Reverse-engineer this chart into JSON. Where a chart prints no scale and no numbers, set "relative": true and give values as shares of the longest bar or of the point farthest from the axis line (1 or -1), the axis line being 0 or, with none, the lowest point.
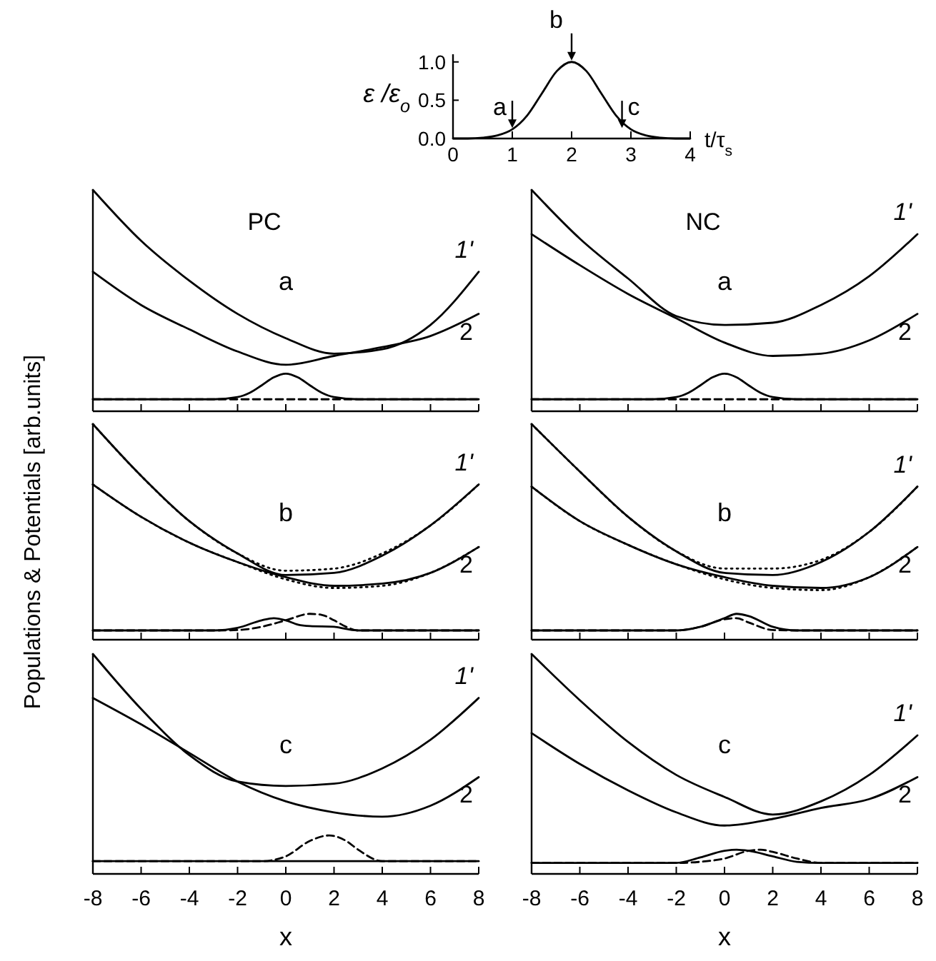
{
  "chart_data": [
    {
      "type": "line",
      "xlabel": "t/τ$_{s}$",
      "ylabel": "ε /ε$_{o}$",
      "x": [
        0,
        0.25,
        0.5,
        0.75,
        1,
        1.25,
        1.5,
        1.75,
        2,
        2.25,
        2.5,
        2.75,
        3,
        3.25,
        3.5,
        3.75,
        4
      ],
      "series": [
        {
          "color": "#000000",
          "values": [
            0,
            0,
            0.01,
            0.04,
            0.12,
            0.3,
            0.59,
            0.88,
            1.0,
            0.88,
            0.59,
            0.3,
            0.12,
            0.04,
            0.01,
            0,
            0
          ]
        }
      ],
      "xlim": [
        0,
        4
      ],
      "xticks": [
        0,
        1,
        2,
        3,
        4
      ],
      "ylim": [
        0,
        1.1
      ],
      "yticks": [
        {
          "value": 0,
          "label": "0.0"
        },
        {
          "value": 0.5,
          "label": "0.5"
        },
        {
          "value": 1,
          "label": "1.0"
        }
      ],
      "annotations": [
        {
          "text": "a",
          "x": 1,
          "y": 0.12
        },
        {
          "text": "b",
          "x": 2,
          "y": 1.0
        },
        {
          "text": "c",
          "x": 2.85,
          "y": 0.12
        }
      ]
    },
    {
      "type": "line",
      "title": "PC",
      "relative": true,
      "tick_labels": false,
      "xlim": [
        -8,
        8
      ],
      "xticks": [
        -8,
        -6,
        -4,
        -2,
        0,
        2,
        4,
        6,
        8
      ],
      "x": [
        -8,
        -6,
        -4,
        -2,
        0,
        2,
        4,
        6,
        8
      ],
      "annotations": [
        "a"
      ],
      "series": [
        {
          "name": "1'",
          "color": "#000000",
          "values": [
            1.0,
            0.77,
            0.59,
            0.44,
            0.33,
            0.26,
            0.28,
            0.39,
            0.63
          ]
        },
        {
          "name": "2",
          "color": "#000000",
          "values": [
            0.63,
            0.48,
            0.37,
            0.27,
            0.21,
            0.25,
            0.29,
            0.34,
            0.44
          ]
        },
        {
          "color": "#000000",
          "x": [
            -8,
            -3,
            -2,
            -1.5,
            -1,
            -0.5,
            0,
            0.5,
            1,
            1.5,
            2,
            3,
            8
          ],
          "values": [
            0.054,
            0.054,
            0.064,
            0.083,
            0.117,
            0.153,
            0.17,
            0.153,
            0.117,
            0.083,
            0.064,
            0.054,
            0.054
          ]
        },
        {
          "color": "#000000",
          "line_style": "dashed",
          "x": [
            -8,
            8
          ],
          "values": [
            0.054,
            0.054
          ]
        }
      ]
    },
    {
      "type": "line",
      "title": "NC",
      "relative": true,
      "tick_labels": false,
      "xlim": [
        -8,
        8
      ],
      "xticks": [
        -8,
        -6,
        -4,
        -2,
        0,
        2,
        4,
        6,
        8
      ],
      "x": [
        -8,
        -6,
        -4,
        -2,
        0,
        2,
        4,
        6,
        8
      ],
      "annotations": [
        "a"
      ],
      "series": [
        {
          "name": "1'",
          "color": "#000000",
          "values": [
            1.0,
            0.78,
            0.6,
            0.43,
            0.39,
            0.4,
            0.48,
            0.61,
            0.8
          ]
        },
        {
          "name": "2",
          "color": "#000000",
          "values": [
            0.8,
            0.66,
            0.53,
            0.42,
            0.31,
            0.25,
            0.26,
            0.32,
            0.44
          ]
        },
        {
          "color": "#000000",
          "x": [
            -8,
            -3,
            -2,
            -1.5,
            -1,
            -0.5,
            0,
            0.5,
            1,
            1.5,
            2,
            3,
            8
          ],
          "values": [
            0.054,
            0.054,
            0.064,
            0.083,
            0.117,
            0.153,
            0.17,
            0.153,
            0.117,
            0.083,
            0.064,
            0.054,
            0.054
          ]
        },
        {
          "color": "#000000",
          "line_style": "dashed",
          "x": [
            -8,
            8
          ],
          "values": [
            0.054,
            0.054
          ]
        }
      ]
    },
    {
      "type": "line",
      "ylabel": "Populations & Potentials [arb.units]",
      "relative": true,
      "tick_labels": false,
      "xlim": [
        -8,
        8
      ],
      "xticks": [
        -8,
        -6,
        -4,
        -2,
        0,
        2,
        4,
        6,
        8
      ],
      "x": [
        -8,
        -6,
        -4,
        -2,
        0,
        2,
        4,
        6,
        8
      ],
      "annotations": [
        "b"
      ],
      "series": [
        {
          "name": "1'",
          "color": "#000000",
          "values": [
            1.0,
            0.76,
            0.55,
            0.4,
            0.3,
            0.31,
            0.39,
            0.53,
            0.72
          ]
        },
        {
          "name": "2",
          "color": "#000000",
          "values": [
            0.72,
            0.57,
            0.45,
            0.36,
            0.29,
            0.25,
            0.26,
            0.31,
            0.43
          ]
        },
        {
          "color": "#000000",
          "line_style": "dotted",
          "values": [
            1.0,
            0.76,
            0.55,
            0.4,
            0.32,
            0.33,
            0.4,
            0.53,
            0.72
          ]
        },
        {
          "color": "#000000",
          "line_style": "dotted",
          "values": [
            0.72,
            0.57,
            0.45,
            0.36,
            0.28,
            0.24,
            0.25,
            0.31,
            0.43
          ]
        },
        {
          "color": "#000000",
          "x": [
            -8,
            -3,
            -2,
            -1,
            -0.5,
            0,
            0.5,
            1,
            2,
            2.5,
            3,
            8
          ],
          "values": [
            0.043,
            0.043,
            0.055,
            0.09,
            0.1,
            0.09,
            0.07,
            0.063,
            0.06,
            0.05,
            0.043,
            0.043
          ]
        },
        {
          "color": "#000000",
          "line_style": "dashed",
          "x": [
            -8,
            -3,
            -2,
            -1,
            0,
            1,
            1.5,
            2,
            2.5,
            3,
            8
          ],
          "values": [
            0.043,
            0.043,
            0.045,
            0.06,
            0.09,
            0.12,
            0.115,
            0.09,
            0.06,
            0.043,
            0.043
          ]
        }
      ]
    },
    {
      "type": "line",
      "relative": true,
      "tick_labels": false,
      "xlim": [
        -8,
        8
      ],
      "xticks": [
        -8,
        -6,
        -4,
        -2,
        0,
        2,
        4,
        6,
        8
      ],
      "x": [
        -8,
        -6,
        -4,
        -2,
        0,
        2,
        4,
        6,
        8
      ],
      "annotations": [
        "b"
      ],
      "series": [
        {
          "name": "1'",
          "color": "#000000",
          "values": [
            1.0,
            0.78,
            0.57,
            0.41,
            0.31,
            0.3,
            0.36,
            0.5,
            0.71
          ]
        },
        {
          "name": "2",
          "color": "#000000",
          "values": [
            0.71,
            0.55,
            0.44,
            0.35,
            0.29,
            0.25,
            0.24,
            0.29,
            0.43
          ]
        },
        {
          "color": "#000000",
          "line_style": "dotted",
          "values": [
            1.0,
            0.78,
            0.57,
            0.41,
            0.33,
            0.33,
            0.37,
            0.5,
            0.71
          ]
        },
        {
          "color": "#000000",
          "line_style": "dotted",
          "values": [
            0.71,
            0.55,
            0.44,
            0.35,
            0.28,
            0.24,
            0.23,
            0.29,
            0.43
          ]
        },
        {
          "color": "#000000",
          "x": [
            -8,
            -2,
            -1,
            0,
            0.5,
            1,
            2,
            3,
            8
          ],
          "values": [
            0.043,
            0.043,
            0.06,
            0.1,
            0.12,
            0.11,
            0.06,
            0.043,
            0.043
          ]
        },
        {
          "color": "#000000",
          "line_style": "dashed",
          "x": [
            -8,
            -2,
            -1,
            0,
            0.5,
            1,
            2,
            3,
            8
          ],
          "values": [
            0.043,
            0.043,
            0.06,
            0.095,
            0.1,
            0.08,
            0.045,
            0.043,
            0.043
          ]
        }
      ]
    },
    {
      "type": "line",
      "xlabel": "x",
      "relative": true,
      "tick_labels": "x",
      "xlim": [
        -8,
        8
      ],
      "xticks": [
        -8,
        -6,
        -4,
        -2,
        0,
        2,
        4,
        6,
        8
      ],
      "x": [
        -8,
        -6,
        -4,
        -2,
        0,
        2,
        4,
        6,
        8
      ],
      "annotations": [
        "c"
      ],
      "series": [
        {
          "name": "1'",
          "color": "#000000",
          "values": [
            1.0,
            0.75,
            0.54,
            0.42,
            0.4,
            0.41,
            0.48,
            0.61,
            0.8
          ]
        },
        {
          "name": "2",
          "color": "#000000",
          "values": [
            0.8,
            0.68,
            0.55,
            0.42,
            0.33,
            0.28,
            0.26,
            0.31,
            0.44
          ]
        },
        {
          "color": "#000000",
          "x": [
            -8,
            8
          ],
          "values": [
            0.058,
            0.058
          ]
        },
        {
          "color": "#000000",
          "line_style": "dashed",
          "x": [
            -8,
            -1,
            0,
            1,
            1.8,
            2.5,
            3,
            4,
            8
          ],
          "values": [
            0.058,
            0.058,
            0.08,
            0.15,
            0.175,
            0.15,
            0.11,
            0.058,
            0.058
          ]
        }
      ]
    },
    {
      "type": "line",
      "xlabel": "x",
      "relative": true,
      "tick_labels": "x",
      "xlim": [
        -8,
        8
      ],
      "xticks": [
        -8,
        -6,
        -4,
        -2,
        0,
        2,
        4,
        6,
        8
      ],
      "x": [
        -8,
        -6,
        -4,
        -2,
        0,
        2,
        4,
        6,
        8
      ],
      "annotations": [
        "c"
      ],
      "series": [
        {
          "name": "1'",
          "color": "#000000",
          "values": [
            1.0,
            0.79,
            0.6,
            0.45,
            0.35,
            0.27,
            0.33,
            0.45,
            0.63
          ]
        },
        {
          "name": "2",
          "color": "#000000",
          "values": [
            0.64,
            0.5,
            0.38,
            0.28,
            0.22,
            0.25,
            0.3,
            0.34,
            0.44
          ]
        },
        {
          "color": "#000000",
          "x": [
            -8,
            -2,
            -1,
            0,
            0.5,
            1,
            2,
            3,
            4,
            8
          ],
          "values": [
            0.05,
            0.05,
            0.075,
            0.105,
            0.11,
            0.105,
            0.08,
            0.055,
            0.05,
            0.05
          ]
        },
        {
          "color": "#000000",
          "line_style": "dashed",
          "x": [
            -8,
            -2,
            -1,
            0,
            1,
            1.5,
            2,
            3,
            4,
            8
          ],
          "values": [
            0.05,
            0.05,
            0.055,
            0.07,
            0.105,
            0.11,
            0.1,
            0.07,
            0.05,
            0.05
          ]
        }
      ]
    }
  ]
}
